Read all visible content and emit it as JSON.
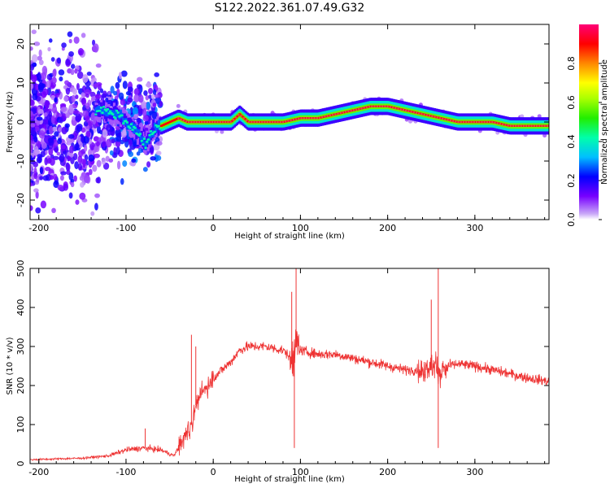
{
  "title": "S122.2022.361.07.49.G32",
  "colors": {
    "snr_line": "#ee3333",
    "spectrogram_track": "#e04a4a",
    "frame": "#000000"
  },
  "chart_data": [
    {
      "type": "heatmap",
      "title": "",
      "xlabel": "Height of straight line (km)",
      "ylabel": "Frequency (Hz)",
      "xlim": [
        -210,
        385
      ],
      "ylim": [
        -25,
        25
      ],
      "x_ticks": [
        -200,
        -100,
        0,
        100,
        200,
        300
      ],
      "y_ticks": [
        -20,
        -10,
        0,
        10,
        20
      ],
      "colorbar": {
        "label": "Normalized spectral amplitude",
        "range": [
          0,
          1
        ],
        "ticks": [
          0.0,
          0.2,
          0.4,
          0.6,
          0.8
        ],
        "colormap": "rainbow (violet → blue → cyan → green → yellow → orange → red → magenta)"
      },
      "dominant_frequency_track": {
        "x": [
          -130,
          -110,
          -95,
          -85,
          -78,
          -70,
          -60,
          -50,
          -40,
          -30,
          -20,
          0,
          20,
          30,
          40,
          60,
          80,
          100,
          120,
          140,
          160,
          180,
          200,
          220,
          240,
          260,
          280,
          300,
          320,
          340,
          360,
          385
        ],
        "y": [
          3,
          2,
          -1,
          -3,
          -6,
          -2,
          -1,
          0,
          1,
          0,
          0,
          0,
          0,
          2,
          0,
          0,
          0,
          1,
          1,
          2,
          3,
          4,
          4,
          3,
          2,
          1,
          0,
          0,
          0,
          -1,
          -1,
          -1
        ]
      }
    },
    {
      "type": "line",
      "title": "",
      "xlabel": "Height of straight line (km)",
      "ylabel": "SNR (10 * v/v)",
      "xlim": [
        -210,
        385
      ],
      "ylim": [
        0,
        500
      ],
      "x_ticks": [
        -200,
        -100,
        0,
        100,
        200,
        300
      ],
      "y_ticks": [
        0,
        100,
        200,
        300,
        400,
        500
      ],
      "series": [
        {
          "x": [
            -210,
            -180,
            -150,
            -120,
            -100,
            -80,
            -60,
            -45,
            -35,
            -25,
            -20,
            -10,
            0,
            10,
            20,
            30,
            40,
            60,
            80,
            90,
            95,
            100,
            120,
            140,
            160,
            180,
            200,
            220,
            240,
            255,
            260,
            270,
            280,
            300,
            320,
            340,
            360,
            385
          ],
          "y": [
            10,
            12,
            14,
            20,
            35,
            40,
            35,
            20,
            60,
            100,
            150,
            190,
            220,
            240,
            260,
            290,
            300,
            300,
            290,
            270,
            300,
            290,
            280,
            280,
            270,
            260,
            250,
            240,
            240,
            250,
            230,
            250,
            255,
            250,
            240,
            230,
            220,
            210
          ]
        }
      ],
      "spikes": [
        {
          "x": -78,
          "y": 90
        },
        {
          "x": -25,
          "y": 330
        },
        {
          "x": -20,
          "y": 300
        },
        {
          "x": 95,
          "y": 500
        },
        {
          "x": 90,
          "y": 440
        },
        {
          "x": 93,
          "y": 40
        },
        {
          "x": 258,
          "y": 500
        },
        {
          "x": 250,
          "y": 420
        },
        {
          "x": 258,
          "y": 40
        }
      ]
    }
  ]
}
